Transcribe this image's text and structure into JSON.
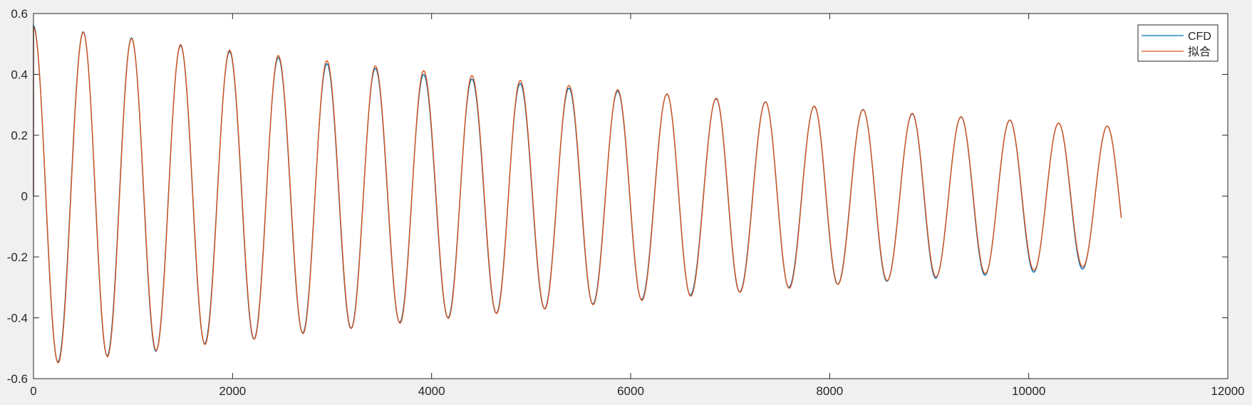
{
  "chart_data": {
    "type": "line",
    "title": "",
    "xlabel": "",
    "ylabel": "",
    "xlim": [
      0,
      12000
    ],
    "ylim": [
      -0.6,
      0.6
    ],
    "x_ticks": [
      "0",
      "2000",
      "4000",
      "6000",
      "8000",
      "10000",
      "12000"
    ],
    "y_ticks": [
      "-0.6",
      "-0.4",
      "-0.2",
      "0",
      "0.2",
      "0.4",
      "0.6"
    ],
    "grid": false,
    "legend": {
      "position": "top-right",
      "entries": [
        "CFD",
        "拟合"
      ]
    },
    "series": [
      {
        "name": "CFD",
        "color": "#0072bd",
        "x": [
          0,
          500,
          985,
          1478,
          1970,
          2460,
          2948,
          3435,
          3920,
          4405,
          4890,
          5380,
          5870,
          6365,
          6860,
          7355,
          7845,
          8335,
          8830,
          9320,
          9810,
          10300,
          10790,
          10930
        ],
        "y": [
          0.56,
          0.54,
          0.52,
          0.495,
          0.475,
          0.455,
          0.435,
          0.42,
          0.4,
          0.385,
          0.37,
          0.355,
          0.345,
          0.335,
          0.32,
          0.31,
          0.295,
          0.285,
          0.27,
          0.26,
          0.25,
          0.24,
          0.23,
          -0.07
        ],
        "troughs": {
          "x": [
            245,
            740,
            1230,
            1720,
            2215,
            2705,
            3190,
            3680,
            4165,
            4650,
            5135,
            5620,
            6110,
            6600,
            7095,
            7590,
            8080,
            8575,
            9065,
            9560,
            10050,
            10540
          ],
          "y": [
            -0.545,
            -0.525,
            -0.51,
            -0.485,
            -0.47,
            -0.45,
            -0.435,
            -0.415,
            -0.4,
            -0.385,
            -0.37,
            -0.355,
            -0.34,
            -0.325,
            -0.315,
            -0.3,
            -0.29,
            -0.28,
            -0.27,
            -0.26,
            -0.25,
            -0.24
          ]
        }
      },
      {
        "name": "拟合",
        "color": "#d95319",
        "x": [
          0,
          500,
          985,
          1478,
          1970,
          2460,
          2948,
          3435,
          3920,
          4405,
          4890,
          5380,
          5870,
          6365,
          6860,
          7355,
          7845,
          8335,
          8830,
          9320,
          9810,
          10300,
          10790,
          10930
        ],
        "y": [
          0.555,
          0.538,
          0.518,
          0.498,
          0.48,
          0.462,
          0.445,
          0.428,
          0.412,
          0.396,
          0.38,
          0.364,
          0.35,
          0.336,
          0.322,
          0.309,
          0.296,
          0.284,
          0.272,
          0.261,
          0.25,
          0.24,
          0.23,
          -0.072
        ],
        "troughs": {
          "x": [
            248,
            743,
            1233,
            1723,
            2218,
            2708,
            3193,
            3683,
            4168,
            4653,
            5138,
            5623,
            6113,
            6603,
            7098,
            7593,
            8083,
            8578,
            9068,
            9563,
            10053,
            10543
          ],
          "y": [
            -0.548,
            -0.528,
            -0.508,
            -0.488,
            -0.47,
            -0.452,
            -0.435,
            -0.418,
            -0.402,
            -0.386,
            -0.371,
            -0.357,
            -0.343,
            -0.329,
            -0.316,
            -0.303,
            -0.29,
            -0.278,
            -0.266,
            -0.255,
            -0.244,
            -0.233
          ]
        }
      }
    ]
  }
}
